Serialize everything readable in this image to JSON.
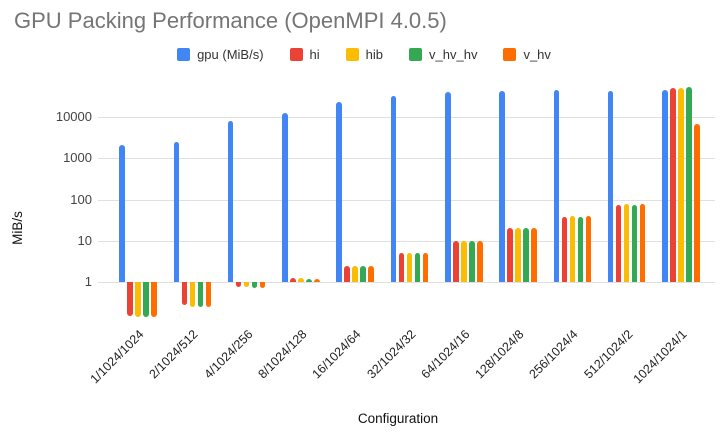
{
  "title": "GPU Packing Performance (OpenMPI 4.0.5)",
  "chart_data": {
    "type": "bar",
    "title": "GPU Packing Performance (OpenMPI 4.0.5)",
    "xlabel": "Configuration",
    "ylabel": "MiB/s",
    "y_scale": "log",
    "y_ticks": [
      1,
      10,
      100,
      1000,
      10000
    ],
    "ylim": [
      0.1,
      60000
    ],
    "grid": true,
    "legend_position": "top",
    "categories": [
      "1/1024/1024",
      "2/1024/512",
      "4/1024/256",
      "8/1024/128",
      "16/1024/64",
      "32/1024/32",
      "64/1024/16",
      "128/1024/8",
      "256/1024/4",
      "512/1024/2",
      "1024/1024/1"
    ],
    "series": [
      {
        "name": "gpu (MiB/s)",
        "color": "#4285F4",
        "values": [
          2100,
          2500,
          8000,
          12500,
          23000,
          33000,
          40000,
          44000,
          47000,
          44000,
          47000
        ]
      },
      {
        "name": "hi",
        "color": "#EA4335",
        "values": [
          0.15,
          0.27,
          0.75,
          1.25,
          2.4,
          5,
          10,
          20,
          37,
          76,
          52000
        ]
      },
      {
        "name": "hib",
        "color": "#FBBC04",
        "values": [
          0.14,
          0.25,
          0.75,
          1.25,
          2.4,
          5,
          10,
          20,
          40,
          80,
          50000
        ]
      },
      {
        "name": "v_hv_hv",
        "color": "#34A853",
        "values": [
          0.14,
          0.25,
          0.72,
          1.2,
          2.4,
          5,
          10,
          20,
          37,
          76,
          54000
        ]
      },
      {
        "name": "v_hv",
        "color": "#FF6D01",
        "values": [
          0.14,
          0.25,
          0.7,
          1.2,
          2.4,
          5,
          10,
          20,
          40,
          80,
          6800
        ]
      }
    ]
  }
}
